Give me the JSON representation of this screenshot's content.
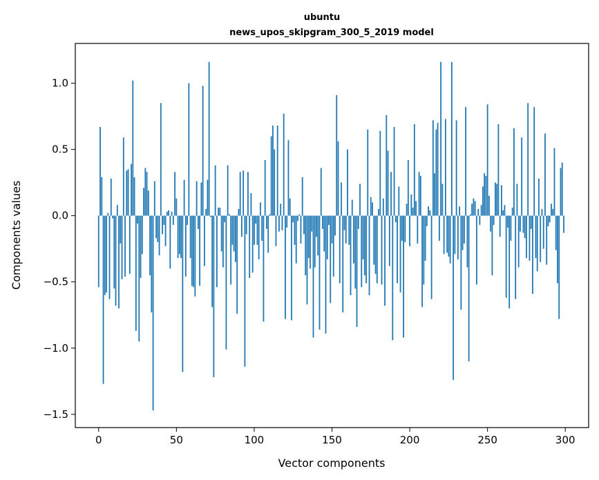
{
  "chart_data": {
    "type": "bar",
    "title": [
      "ubuntu",
      "news_upos_skipgram_300_5_2019 model"
    ],
    "xlabel": "Vector components",
    "ylabel": "Components values",
    "xlim": [
      -15,
      315
    ],
    "ylim": [
      -1.6,
      1.3
    ],
    "xticks": [
      0,
      50,
      100,
      150,
      200,
      250,
      300
    ],
    "yticks": [
      -1.5,
      -1.0,
      -0.5,
      0.0,
      0.5,
      1.0
    ],
    "ytick_labels": [
      "−1.5",
      "−1.0",
      "−0.5",
      "0.0",
      "0.5",
      "1.0"
    ],
    "bar_color": "#1f77b4",
    "grid": false,
    "x": [
      0,
      1,
      2,
      3,
      4,
      5,
      6,
      7,
      8,
      9,
      10,
      11,
      12,
      13,
      14,
      15,
      16,
      17,
      18,
      19,
      20,
      21,
      22,
      23,
      24,
      25,
      26,
      27,
      28,
      29,
      30,
      31,
      32,
      33,
      34,
      35,
      36,
      37,
      38,
      39,
      40,
      41,
      42,
      43,
      44,
      45,
      46,
      47,
      48,
      49,
      50,
      51,
      52,
      53,
      54,
      55,
      56,
      57,
      58,
      59,
      60,
      61,
      62,
      63,
      64,
      65,
      66,
      67,
      68,
      69,
      70,
      71,
      72,
      73,
      74,
      75,
      76,
      77,
      78,
      79,
      80,
      81,
      82,
      83,
      84,
      85,
      86,
      87,
      88,
      89,
      90,
      91,
      92,
      93,
      94,
      95,
      96,
      97,
      98,
      99,
      100,
      101,
      102,
      103,
      104,
      105,
      106,
      107,
      108,
      109,
      110,
      111,
      112,
      113,
      114,
      115,
      116,
      117,
      118,
      119,
      120,
      121,
      122,
      123,
      124,
      125,
      126,
      127,
      128,
      129,
      130,
      131,
      132,
      133,
      134,
      135,
      136,
      137,
      138,
      139,
      140,
      141,
      142,
      143,
      144,
      145,
      146,
      147,
      148,
      149,
      150,
      151,
      152,
      153,
      154,
      155,
      156,
      157,
      158,
      159,
      160,
      161,
      162,
      163,
      164,
      165,
      166,
      167,
      168,
      169,
      170,
      171,
      172,
      173,
      174,
      175,
      176,
      177,
      178,
      179,
      180,
      181,
      182,
      183,
      184,
      185,
      186,
      187,
      188,
      189,
      190,
      191,
      192,
      193,
      194,
      195,
      196,
      197,
      198,
      199,
      200,
      201,
      202,
      203,
      204,
      205,
      206,
      207,
      208,
      209,
      210,
      211,
      212,
      213,
      214,
      215,
      216,
      217,
      218,
      219,
      220,
      221,
      222,
      223,
      224,
      225,
      226,
      227,
      228,
      229,
      230,
      231,
      232,
      233,
      234,
      235,
      236,
      237,
      238,
      239,
      240,
      241,
      242,
      243,
      244,
      245,
      246,
      247,
      248,
      249,
      250,
      251,
      252,
      253,
      254,
      255,
      256,
      257,
      258,
      259,
      260,
      261,
      262,
      263,
      264,
      265,
      266,
      267,
      268,
      269,
      270,
      271,
      272,
      273,
      274,
      275,
      276,
      277,
      278,
      279,
      280,
      281,
      282,
      283,
      284,
      285,
      286,
      287,
      288,
      289,
      290,
      291,
      292,
      293,
      294,
      295,
      296,
      297,
      298,
      299
    ],
    "values": [
      -0.54,
      0.67,
      0.29,
      -1.27,
      -0.6,
      -0.58,
      0.02,
      -0.63,
      0.28,
      -0.02,
      -0.55,
      -0.68,
      0.08,
      -0.7,
      -0.21,
      -0.48,
      0.59,
      -0.46,
      0.34,
      0.35,
      -0.44,
      0.39,
      1.02,
      0.29,
      -0.87,
      -0.06,
      -0.95,
      -0.47,
      -0.29,
      0.21,
      0.36,
      0.33,
      0.19,
      -0.45,
      -0.73,
      -1.47,
      0.26,
      -0.17,
      -0.2,
      -0.3,
      0.85,
      -0.14,
      -0.07,
      -0.23,
      0.03,
      0.04,
      -0.4,
      0.03,
      -0.07,
      0.33,
      0.13,
      -0.32,
      -0.29,
      -0.32,
      -1.18,
      0.27,
      -0.46,
      -0.07,
      1.0,
      -0.32,
      -0.53,
      -0.54,
      -0.61,
      0.26,
      -0.1,
      -0.53,
      0.25,
      0.98,
      -0.38,
      0.05,
      0.27,
      1.16,
      -0.01,
      -0.69,
      -1.22,
      0.38,
      -0.54,
      0.06,
      0.06,
      -0.27,
      -0.39,
      -0.05,
      -1.01,
      0.38,
      0.01,
      -0.52,
      -0.22,
      -0.27,
      -0.35,
      -0.74,
      0.05,
      0.33,
      -0.16,
      0.34,
      -1.14,
      -0.14,
      0.33,
      -0.47,
      0.17,
      -0.43,
      -0.22,
      -0.06,
      -0.22,
      -0.33,
      0.1,
      -0.19,
      -0.8,
      0.42,
      -0.1,
      -0.28,
      0.01,
      0.6,
      0.68,
      0.5,
      -0.23,
      0.68,
      -0.12,
      0.09,
      -0.11,
      0.77,
      -0.78,
      -0.09,
      0.57,
      0.13,
      -0.79,
      -0.05,
      -0.22,
      -0.36,
      -0.04,
      0.01,
      -0.21,
      0.29,
      -0.14,
      -0.45,
      -0.67,
      -0.32,
      -0.4,
      -0.12,
      -0.92,
      -0.39,
      -0.16,
      -0.3,
      -0.86,
      0.36,
      -0.1,
      -0.27,
      -0.89,
      -0.33,
      -0.07,
      -0.66,
      -0.21,
      -0.46,
      -0.15,
      0.91,
      0.56,
      -0.51,
      0.25,
      -0.73,
      -0.11,
      -0.21,
      0.5,
      -0.22,
      -0.6,
      0.12,
      -0.36,
      -0.55,
      -0.84,
      -0.1,
      0.24,
      -0.54,
      -0.33,
      -0.45,
      -0.51,
      0.65,
      -0.6,
      0.14,
      0.1,
      -0.37,
      -0.44,
      -0.51,
      0.05,
      0.64,
      -0.52,
      0.13,
      -0.68,
      0.76,
      0.49,
      -0.38,
      0.33,
      -0.94,
      0.67,
      -0.05,
      -0.51,
      0.22,
      -0.58,
      -0.19,
      -0.92,
      -0.2,
      0.09,
      0.42,
      -0.23,
      0.16,
      0.06,
      0.69,
      0.11,
      -0.21,
      0.33,
      0.3,
      -0.69,
      -0.52,
      -0.34,
      -0.08,
      0.07,
      0.04,
      -0.63,
      0.72,
      0.32,
      0.65,
      0.7,
      -0.19,
      1.16,
      0.24,
      -0.29,
      0.73,
      -0.28,
      -0.31,
      -0.36,
      1.16,
      -1.24,
      -0.29,
      0.72,
      -0.33,
      0.07,
      -0.71,
      -0.26,
      -0.21,
      0.82,
      -0.39,
      -1.1,
      0.01,
      0.09,
      0.13,
      0.11,
      -0.52,
      0.05,
      -0.07,
      0.08,
      0.22,
      0.32,
      0.3,
      0.84,
      0.15,
      -0.12,
      -0.45,
      -0.07,
      0.25,
      0.24,
      0.69,
      -0.16,
      0.23,
      0.04,
      0.08,
      -0.62,
      -0.09,
      -0.7,
      -0.19,
      0.06,
      0.66,
      -0.63,
      0.24,
      -0.39,
      -0.12,
      0.59,
      -0.13,
      -0.17,
      -0.32,
      0.85,
      -0.34,
      -0.1,
      -0.59,
      0.82,
      -0.32,
      -0.42,
      0.28,
      -0.35,
      0.05,
      -0.25,
      0.62,
      -0.37,
      -0.08,
      -0.05,
      0.09,
      0.05,
      0.51,
      -0.26,
      -0.51,
      -0.78,
      0.36,
      0.4,
      -0.13
    ]
  }
}
